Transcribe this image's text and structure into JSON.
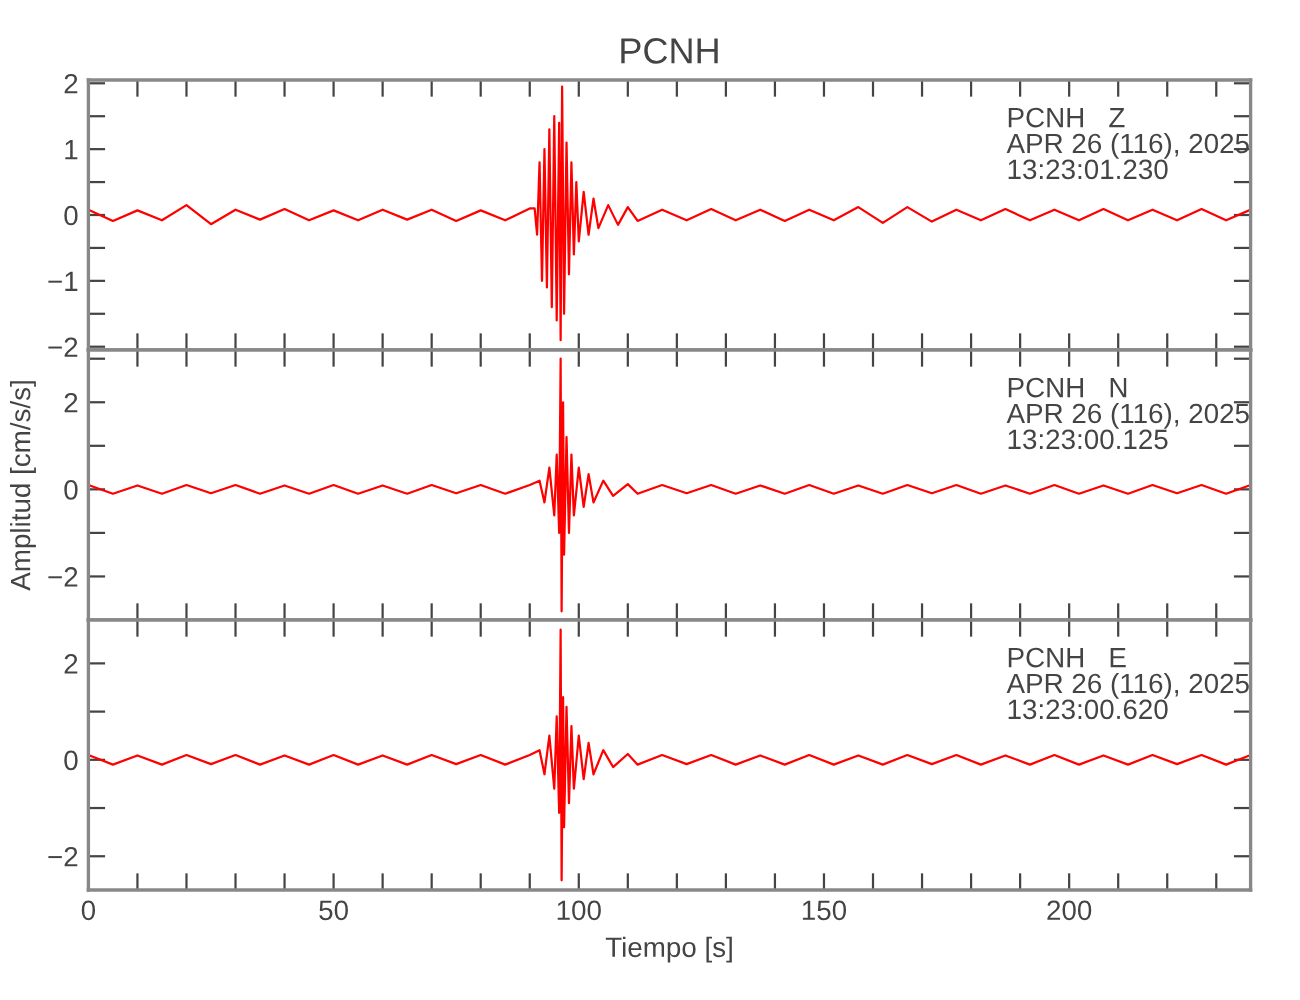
{
  "chart_data": [
    {
      "type": "line",
      "title": "PCNH",
      "annotations": [
        "PCNH   Z\nAPR 26 (116), 2025\n13:23:01.230"
      ],
      "xlim": [
        0,
        237
      ],
      "ylim": [
        -2.05,
        2.05
      ],
      "tick_labels": "y",
      "grid": false,
      "legend": false,
      "xticks": [
        0,
        {
          "value": 10,
          "label": null
        },
        {
          "value": 20,
          "label": null
        },
        {
          "value": 30,
          "label": null
        },
        {
          "value": 40,
          "label": null
        },
        50,
        {
          "value": 60,
          "label": null
        },
        {
          "value": 70,
          "label": null
        },
        {
          "value": 80,
          "label": null
        },
        {
          "value": 90,
          "label": null
        },
        100,
        {
          "value": 110,
          "label": null
        },
        {
          "value": 120,
          "label": null
        },
        {
          "value": 130,
          "label": null
        },
        {
          "value": 140,
          "label": null
        },
        150,
        {
          "value": 160,
          "label": null
        },
        {
          "value": 170,
          "label": null
        },
        {
          "value": 180,
          "label": null
        },
        {
          "value": 190,
          "label": null
        },
        200,
        {
          "value": 210,
          "label": null
        },
        {
          "value": 220,
          "label": null
        },
        {
          "value": 230,
          "label": null
        }
      ],
      "yticks": [
        {
          "value": -2,
          "label": "−2"
        },
        {
          "value": -1.5,
          "label": null
        },
        {
          "value": -1,
          "label": "−1"
        },
        {
          "value": -0.5,
          "label": null
        },
        0,
        {
          "value": 0.5,
          "label": null
        },
        1,
        {
          "value": 1.5,
          "label": null
        },
        2
      ],
      "series": [
        {
          "color": "#ff0000",
          "x": [
            0,
            5,
            10,
            15,
            20,
            25,
            30,
            35,
            40,
            45,
            50,
            55,
            60,
            65,
            70,
            75,
            80,
            85,
            90,
            91,
            91.5,
            92,
            92.5,
            93,
            93.5,
            94,
            94.5,
            95,
            95.5,
            96,
            96.3,
            96.6,
            97,
            97.5,
            98,
            98.5,
            99,
            99.5,
            100,
            101,
            102,
            103,
            104,
            106,
            108,
            110,
            112,
            117,
            122,
            127,
            132,
            137,
            142,
            147,
            152,
            157,
            162,
            167,
            172,
            177,
            182,
            187,
            192,
            197,
            202,
            207,
            212,
            217,
            222,
            227,
            232,
            237
          ],
          "values": [
            0.08,
            -0.09,
            0.07,
            -0.08,
            0.15,
            -0.14,
            0.08,
            -0.07,
            0.09,
            -0.08,
            0.07,
            -0.08,
            0.08,
            -0.07,
            0.08,
            -0.09,
            0.07,
            -0.08,
            0.1,
            0.1,
            -0.3,
            0.8,
            -1.0,
            1.0,
            -1.1,
            1.3,
            -1.4,
            1.5,
            -1.6,
            1.4,
            -1.9,
            1.95,
            -1.5,
            1.1,
            -0.9,
            0.8,
            -0.6,
            0.5,
            -0.4,
            0.35,
            -0.3,
            0.25,
            -0.2,
            0.15,
            -0.15,
            0.12,
            -0.09,
            0.08,
            -0.08,
            0.09,
            -0.08,
            0.08,
            -0.09,
            0.08,
            -0.08,
            0.12,
            -0.12,
            0.12,
            -0.1,
            0.08,
            -0.08,
            0.09,
            -0.08,
            0.08,
            -0.08,
            0.09,
            -0.08,
            0.08,
            -0.08,
            0.09,
            -0.08,
            0.08
          ]
        }
      ]
    },
    {
      "type": "line",
      "ylabel": "Amplitud [cm/s/s]",
      "annotations": [
        "PCNH   N\nAPR 26 (116), 2025\n13:23:00.125"
      ],
      "xlim": [
        0,
        237
      ],
      "ylim": [
        -3.0,
        3.2
      ],
      "tick_labels": "y",
      "grid": false,
      "legend": false,
      "xticks": [
        0,
        {
          "value": 10,
          "label": null
        },
        {
          "value": 20,
          "label": null
        },
        {
          "value": 30,
          "label": null
        },
        {
          "value": 40,
          "label": null
        },
        50,
        {
          "value": 60,
          "label": null
        },
        {
          "value": 70,
          "label": null
        },
        {
          "value": 80,
          "label": null
        },
        {
          "value": 90,
          "label": null
        },
        100,
        {
          "value": 110,
          "label": null
        },
        {
          "value": 120,
          "label": null
        },
        {
          "value": 130,
          "label": null
        },
        {
          "value": 140,
          "label": null
        },
        150,
        {
          "value": 160,
          "label": null
        },
        {
          "value": 170,
          "label": null
        },
        {
          "value": 180,
          "label": null
        },
        {
          "value": 190,
          "label": null
        },
        200,
        {
          "value": 210,
          "label": null
        },
        {
          "value": 220,
          "label": null
        },
        {
          "value": 230,
          "label": null
        }
      ],
      "yticks": [
        {
          "value": -2,
          "label": "−2"
        },
        {
          "value": -1,
          "label": null
        },
        0,
        {
          "value": 1,
          "label": null
        },
        2,
        {
          "value": 3,
          "label": null
        }
      ],
      "series": [
        {
          "color": "#ff0000",
          "x": [
            0,
            5,
            10,
            15,
            20,
            25,
            30,
            35,
            40,
            45,
            50,
            55,
            60,
            65,
            70,
            75,
            80,
            85,
            90,
            92,
            93,
            94,
            95,
            95.5,
            96,
            96.3,
            96.5,
            96.8,
            97,
            97.5,
            98,
            98.5,
            99,
            100,
            101,
            102,
            103,
            105,
            107,
            110,
            112,
            117,
            122,
            127,
            132,
            137,
            142,
            147,
            152,
            157,
            162,
            167,
            172,
            177,
            182,
            187,
            192,
            197,
            202,
            207,
            212,
            217,
            222,
            227,
            232,
            237
          ],
          "values": [
            0.1,
            -0.1,
            0.09,
            -0.1,
            0.1,
            -0.09,
            0.1,
            -0.1,
            0.09,
            -0.1,
            0.1,
            -0.1,
            0.09,
            -0.1,
            0.1,
            -0.09,
            0.1,
            -0.1,
            0.1,
            0.2,
            -0.3,
            0.5,
            -0.6,
            0.8,
            -1.0,
            3.0,
            -2.8,
            2.0,
            -1.5,
            1.2,
            -1.0,
            0.8,
            -0.6,
            0.5,
            -0.4,
            0.35,
            -0.3,
            0.2,
            -0.15,
            0.12,
            -0.1,
            0.1,
            -0.09,
            0.1,
            -0.1,
            0.09,
            -0.1,
            0.1,
            -0.1,
            0.09,
            -0.1,
            0.1,
            -0.09,
            0.1,
            -0.1,
            0.09,
            -0.1,
            0.1,
            -0.1,
            0.09,
            -0.1,
            0.1,
            -0.09,
            0.1,
            -0.1,
            0.1
          ]
        }
      ]
    },
    {
      "type": "line",
      "xlabel": "Tiempo [s]",
      "annotations": [
        "PCNH   E\nAPR 26 (116), 2025\n13:23:00.620"
      ],
      "xlim": [
        0,
        237
      ],
      "ylim": [
        -2.7,
        2.9
      ],
      "grid": false,
      "legend": false,
      "xticks": [
        0,
        {
          "value": 10,
          "label": null
        },
        {
          "value": 20,
          "label": null
        },
        {
          "value": 30,
          "label": null
        },
        {
          "value": 40,
          "label": null
        },
        50,
        {
          "value": 60,
          "label": null
        },
        {
          "value": 70,
          "label": null
        },
        {
          "value": 80,
          "label": null
        },
        {
          "value": 90,
          "label": null
        },
        100,
        {
          "value": 110,
          "label": null
        },
        {
          "value": 120,
          "label": null
        },
        {
          "value": 130,
          "label": null
        },
        {
          "value": 140,
          "label": null
        },
        150,
        {
          "value": 160,
          "label": null
        },
        {
          "value": 170,
          "label": null
        },
        {
          "value": 180,
          "label": null
        },
        {
          "value": 190,
          "label": null
        },
        200,
        {
          "value": 210,
          "label": null
        },
        {
          "value": 220,
          "label": null
        },
        {
          "value": 230,
          "label": null
        }
      ],
      "yticks": [
        {
          "value": -2,
          "label": "−2"
        },
        {
          "value": -1,
          "label": null
        },
        0,
        {
          "value": 1,
          "label": null
        },
        2
      ],
      "series": [
        {
          "color": "#ff0000",
          "x": [
            0,
            5,
            10,
            15,
            20,
            25,
            30,
            35,
            40,
            45,
            50,
            55,
            60,
            65,
            70,
            75,
            80,
            85,
            90,
            92,
            93,
            94,
            95,
            95.5,
            96,
            96.3,
            96.5,
            96.8,
            97,
            97.5,
            98,
            98.5,
            99,
            100,
            101,
            102,
            103,
            105,
            107,
            110,
            112,
            117,
            122,
            127,
            132,
            137,
            142,
            147,
            152,
            157,
            162,
            167,
            172,
            177,
            182,
            187,
            192,
            197,
            202,
            207,
            212,
            217,
            222,
            227,
            232,
            237
          ],
          "values": [
            0.1,
            -0.1,
            0.09,
            -0.1,
            0.1,
            -0.09,
            0.1,
            -0.1,
            0.09,
            -0.1,
            0.1,
            -0.1,
            0.09,
            -0.1,
            0.1,
            -0.09,
            0.1,
            -0.1,
            0.1,
            0.2,
            -0.3,
            0.5,
            -0.6,
            0.9,
            -1.1,
            2.7,
            -2.5,
            1.3,
            -1.4,
            1.1,
            -0.9,
            0.7,
            -0.6,
            0.5,
            -0.4,
            0.35,
            -0.3,
            0.2,
            -0.15,
            0.12,
            -0.1,
            0.1,
            -0.09,
            0.1,
            -0.1,
            0.09,
            -0.1,
            0.1,
            -0.1,
            0.09,
            -0.1,
            0.1,
            -0.09,
            0.1,
            -0.1,
            0.09,
            -0.1,
            0.1,
            -0.1,
            0.09,
            -0.1,
            0.1,
            -0.09,
            0.1,
            -0.1,
            0.1
          ]
        }
      ]
    }
  ]
}
